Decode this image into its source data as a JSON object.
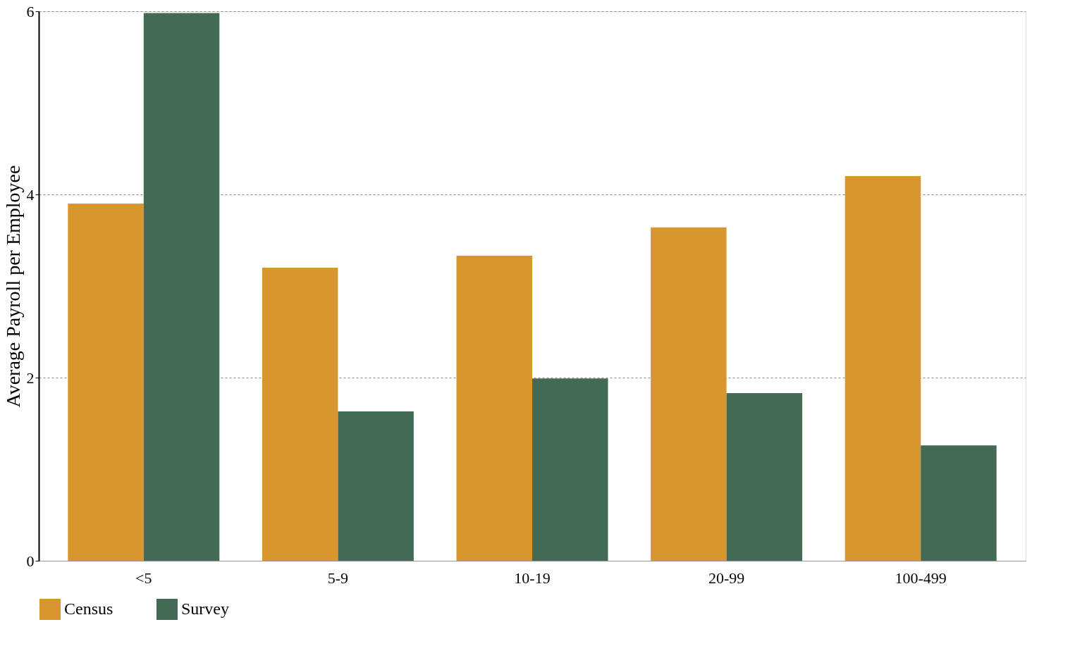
{
  "chart_data": {
    "type": "bar",
    "ylabel": "Average Payroll per Employee",
    "categories": [
      "<5",
      "5-9",
      "10-19",
      "20-99",
      "100-499"
    ],
    "series": [
      {
        "name": "Census",
        "color": "#d8962f",
        "values": [
          3.9,
          3.2,
          3.33,
          3.64,
          4.2
        ]
      },
      {
        "name": "Survey",
        "color": "#436a55",
        "values": [
          5.98,
          1.63,
          1.99,
          1.83,
          1.26
        ]
      }
    ],
    "ylim": [
      0,
      6
    ],
    "yticks": [
      0,
      2,
      4,
      6
    ],
    "grid": "y",
    "legend": "bottom"
  }
}
